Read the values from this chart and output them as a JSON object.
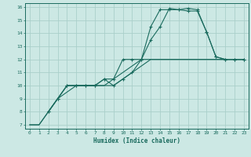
{
  "xlabel": "Humidex (Indice chaleur)",
  "xlim": [
    -0.5,
    23.5
  ],
  "ylim": [
    6.7,
    16.3
  ],
  "xticks": [
    0,
    1,
    2,
    3,
    4,
    5,
    6,
    7,
    8,
    9,
    10,
    11,
    12,
    13,
    14,
    15,
    16,
    17,
    18,
    19,
    20,
    21,
    22,
    23
  ],
  "yticks": [
    7,
    8,
    9,
    10,
    11,
    12,
    13,
    14,
    15,
    16
  ],
  "bg_color": "#cce8e4",
  "line_color": "#1a6b5e",
  "grid_color": "#aacfca",
  "series": [
    {
      "x": [
        0,
        1,
        2,
        3,
        4,
        5,
        6,
        7,
        8,
        9,
        10,
        11,
        12,
        13,
        14,
        15,
        16,
        17,
        18,
        19,
        20,
        21,
        22,
        23
      ],
      "y": [
        7,
        7,
        8,
        9,
        10,
        10,
        10,
        10,
        10,
        10,
        10.5,
        11,
        11.5,
        12,
        12,
        12,
        12,
        12,
        12,
        12,
        12,
        12,
        12,
        12
      ],
      "marker": false
    },
    {
      "x": [
        0,
        1,
        2,
        3,
        4,
        5,
        6,
        7,
        8,
        9,
        10,
        11,
        12,
        13,
        14,
        15,
        16,
        17,
        18,
        19,
        20,
        21,
        22,
        23
      ],
      "y": [
        7,
        7,
        8,
        9,
        9.5,
        10,
        10,
        10,
        10,
        10.5,
        11,
        11.5,
        12,
        12,
        12,
        12,
        12,
        12,
        12,
        12,
        12,
        12,
        12,
        12
      ],
      "marker": false
    },
    {
      "x": [
        2,
        3,
        4,
        5,
        6,
        7,
        8,
        9,
        10,
        11,
        12,
        13,
        14,
        15,
        16,
        17,
        18,
        19,
        20,
        21,
        22,
        23
      ],
      "y": [
        8,
        9,
        10,
        10,
        10,
        10,
        10.5,
        10.5,
        12,
        12,
        12,
        14.5,
        15.8,
        15.8,
        15.8,
        15.7,
        15.7,
        14.1,
        12.2,
        12,
        12,
        12
      ],
      "marker": true
    },
    {
      "x": [
        2,
        3,
        4,
        5,
        6,
        7,
        8,
        9,
        10,
        11,
        12,
        13,
        14,
        15,
        16,
        17,
        18,
        19,
        20,
        21,
        22,
        23
      ],
      "y": [
        8,
        9,
        10,
        10,
        10,
        10,
        10.5,
        10,
        10.5,
        11,
        12,
        13.5,
        14.5,
        15.9,
        15.8,
        15.9,
        15.8,
        14.1,
        12.2,
        12,
        12,
        12
      ],
      "marker": true
    }
  ]
}
